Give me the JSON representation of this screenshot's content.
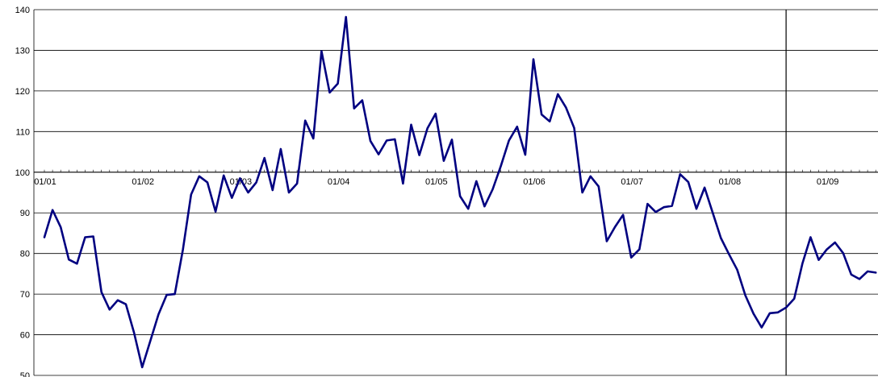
{
  "chart_data": {
    "type": "line",
    "title": "",
    "xlabel": "",
    "ylabel": "",
    "ylim": [
      50,
      140
    ],
    "yticks": [
      50,
      60,
      70,
      80,
      90,
      100,
      110,
      120,
      130,
      140
    ],
    "y_tick_labels": [
      "50",
      "60",
      "70",
      "80",
      "90",
      "100",
      "110",
      "120",
      "130",
      "140"
    ],
    "x_axis_crosses_at": 100,
    "x_tick_labels": [
      "01/01",
      "01/02",
      "01/03",
      "01/04",
      "01/05",
      "01/06",
      "01/07",
      "01/08",
      "01/09"
    ],
    "x_tick_positions": [
      0,
      12,
      24,
      36,
      48,
      60,
      72,
      84,
      96
    ],
    "xlim": [
      0,
      102
    ],
    "grid": true,
    "vertical_marker_at": 91,
    "colors": {
      "series": "#000080",
      "grid": "#000000",
      "marker": "#000000"
    },
    "series": [
      {
        "values": [
          84,
          90.7,
          86.5,
          78.5,
          77.5,
          84,
          84.2,
          70.5,
          66.2,
          68.5,
          67.5,
          60.5,
          52,
          58.5,
          65,
          69.8,
          70,
          81,
          94.5,
          99,
          97.5,
          90.3,
          99.2,
          93.7,
          98.5,
          95,
          97.5,
          103.5,
          95.6,
          105.7,
          95,
          97.2,
          112.7,
          108.3,
          129.8,
          119.6,
          121.8,
          138.2,
          115.7,
          117.7,
          107.7,
          104.4,
          107.8,
          108.1,
          97.2,
          111.7,
          104.2,
          110.8,
          114.4,
          102.8,
          108,
          94.1,
          91,
          97.8,
          91.6,
          95.8,
          101.5,
          107.8,
          111.2,
          104.3,
          127.8,
          114.2,
          112.5,
          119.2,
          115.9,
          110.9,
          95,
          99,
          96.5,
          83,
          86.5,
          89.5,
          79,
          81,
          92.2,
          90.2,
          91.4,
          91.7,
          99.5,
          97.6,
          91,
          96.2,
          90,
          83.8,
          79.8,
          76,
          69.7,
          65.2,
          61.8,
          65.3,
          65.5,
          66.7,
          68.9,
          77.5,
          84,
          78.4,
          81,
          82.7,
          80.1,
          74.8,
          73.7,
          75.6,
          75.3
        ]
      }
    ]
  }
}
